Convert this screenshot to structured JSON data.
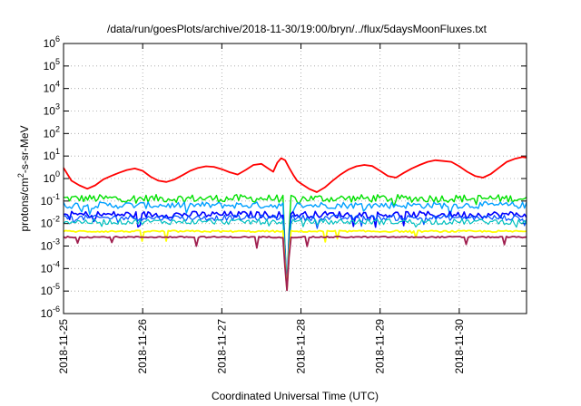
{
  "chart_data": {
    "type": "line",
    "title": "/data/run/goesPlots/archive/2018-11-30/19:00/bryn/../flux/5daysMoonFluxes.txt",
    "xlabel": "Coordinated Universal Time (UTC)",
    "ylabel": {
      "base": "protons/cm",
      "sup": "2",
      "rest": "-s-sr-MeV"
    },
    "x_start": "2018-11-25",
    "x_end_days": 5.85,
    "xticks": [
      "2018-11-25",
      "2018-11-26",
      "2018-11-27",
      "2018-11-28",
      "2018-11-29",
      "2018-11-30"
    ],
    "yscale": "log",
    "ylim_exp": [
      -6,
      6
    ],
    "ytick_exps": [
      -6,
      -5,
      -4,
      -3,
      -2,
      -1,
      0,
      1,
      2,
      3,
      4,
      5,
      6
    ],
    "grid": true,
    "legend": "none",
    "dip": {
      "day": 2.82,
      "halfwidth": 0.045
    },
    "series": [
      {
        "color": "#ff0000",
        "width": 1.8,
        "x": [
          0.0,
          0.1,
          0.2,
          0.3,
          0.4,
          0.5,
          0.6,
          0.7,
          0.8,
          0.9,
          1.0,
          1.1,
          1.2,
          1.3,
          1.4,
          1.5,
          1.6,
          1.7,
          1.8,
          1.9,
          2.0,
          2.1,
          2.2,
          2.3,
          2.4,
          2.5,
          2.6,
          2.65,
          2.7,
          2.75,
          2.8,
          2.85,
          2.9,
          2.95,
          3.0,
          3.1,
          3.2,
          3.3,
          3.4,
          3.5,
          3.6,
          3.7,
          3.8,
          3.9,
          4.0,
          4.1,
          4.2,
          4.3,
          4.4,
          4.5,
          4.6,
          4.7,
          4.8,
          4.9,
          5.0,
          5.1,
          5.2,
          5.3,
          5.4,
          5.5,
          5.6,
          5.7,
          5.8,
          5.85
        ],
        "y": [
          3.0,
          0.8,
          0.5,
          0.35,
          0.5,
          0.9,
          1.3,
          1.8,
          2.4,
          2.8,
          2.2,
          1.2,
          0.8,
          0.7,
          0.9,
          1.4,
          2.2,
          3.0,
          3.5,
          3.3,
          2.6,
          1.9,
          1.5,
          2.4,
          4.0,
          4.5,
          2.6,
          2.0,
          5.0,
          8.0,
          6.5,
          3.0,
          1.5,
          0.8,
          0.6,
          0.35,
          0.25,
          0.4,
          0.8,
          1.5,
          2.5,
          3.5,
          4.0,
          3.6,
          2.2,
          1.3,
          1.1,
          1.8,
          2.8,
          4.0,
          5.5,
          6.5,
          6.0,
          5.5,
          3.5,
          2.0,
          1.3,
          1.1,
          1.6,
          3.0,
          5.5,
          7.5,
          9.0,
          8.5
        ]
      },
      {
        "color": "#00e000",
        "width": 1.4,
        "base": 0.13,
        "amp": 0.35
      },
      {
        "color": "#00a0ff",
        "width": 1.4,
        "base": 0.065,
        "amp": 0.3
      },
      {
        "color": "#0000ff",
        "width": 1.6,
        "base": 0.025,
        "amp": 0.3
      },
      {
        "color": "#0050ff",
        "width": 1.2,
        "base": 0.018,
        "amp": 0.25
      },
      {
        "color": "#00c0c0",
        "width": 1.2,
        "base": 0.012,
        "amp": 0.25
      },
      {
        "color": "#ffff00",
        "width": 1.8,
        "base": 0.0045,
        "amp": 0.08
      },
      {
        "color": "#a02050",
        "width": 1.8,
        "base": 0.0025,
        "amp": 0.06
      }
    ]
  }
}
